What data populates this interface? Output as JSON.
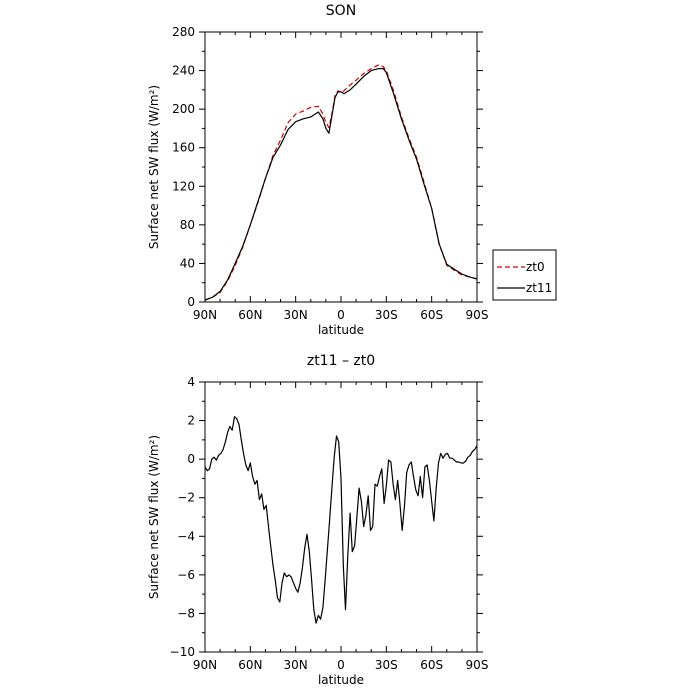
{
  "chart_data": [
    {
      "type": "line",
      "title": "SON",
      "xlabel": "latitude",
      "ylabel": "Surface net SW flux (W/m²)",
      "xlim": [
        90,
        -90
      ],
      "ylim": [
        0,
        280
      ],
      "x_ticks": [
        90,
        60,
        30,
        0,
        -30,
        -60,
        -90
      ],
      "x_tick_labels": [
        "90N",
        "60N",
        "30N",
        "0",
        "30S",
        "60S",
        "90S"
      ],
      "y_ticks": [
        0,
        40,
        80,
        120,
        160,
        200,
        240,
        280
      ],
      "y_tick_labels": [
        "0",
        "40",
        "80",
        "120",
        "160",
        "200",
        "240",
        "280"
      ],
      "legend": {
        "position": "right",
        "entries": [
          "zt0",
          "zt11"
        ]
      },
      "series": [
        {
          "name": "zt0",
          "color": "#cc0000",
          "dash": "dashed",
          "x": [
            90,
            85,
            80,
            75,
            70,
            65,
            60,
            55,
            50,
            45,
            40,
            35,
            30,
            25,
            20,
            15,
            12,
            10,
            8,
            6,
            4,
            2,
            0,
            -2,
            -4,
            -6,
            -10,
            -15,
            -20,
            -25,
            -28,
            -30,
            -35,
            -40,
            -45,
            -50,
            -55,
            -60,
            -65,
            -70,
            -75,
            -80,
            -85,
            -90
          ],
          "y": [
            2,
            5,
            10,
            22,
            38,
            57,
            80,
            103,
            128,
            152,
            168,
            186,
            195,
            198,
            202,
            203,
            195,
            186,
            181,
            195,
            214,
            219,
            217,
            219,
            222,
            225,
            230,
            237,
            242,
            246,
            244,
            240,
            218,
            192,
            170,
            150,
            124,
            97,
            60,
            38,
            33,
            28,
            26,
            24
          ]
        },
        {
          "name": "zt11",
          "color": "#000000",
          "dash": "solid",
          "x": [
            90,
            85,
            80,
            75,
            70,
            65,
            60,
            55,
            50,
            45,
            40,
            35,
            30,
            25,
            20,
            15,
            12,
            10,
            8,
            6,
            4,
            2,
            0,
            -2,
            -4,
            -6,
            -10,
            -15,
            -20,
            -25,
            -28,
            -30,
            -35,
            -40,
            -45,
            -50,
            -55,
            -60,
            -65,
            -70,
            -75,
            -80,
            -85,
            -90
          ],
          "y": [
            2,
            5,
            11,
            23,
            40,
            58,
            80,
            104,
            128,
            150,
            163,
            179,
            187,
            190,
            192,
            197,
            190,
            180,
            175,
            193,
            212,
            218,
            218,
            216,
            218,
            220,
            226,
            234,
            240,
            242,
            242,
            238,
            215,
            190,
            168,
            148,
            122,
            97,
            60,
            39,
            34,
            29,
            26,
            24
          ]
        }
      ]
    },
    {
      "type": "line",
      "title": "zt11 – zt0",
      "xlabel": "latitude",
      "ylabel": "Surface net SW flux (W/m²)",
      "xlim": [
        90,
        -90
      ],
      "ylim": [
        -10,
        4
      ],
      "x_ticks": [
        90,
        60,
        30,
        0,
        -30,
        -60,
        -90
      ],
      "x_tick_labels": [
        "90N",
        "60N",
        "30N",
        "0",
        "30S",
        "60S",
        "90S"
      ],
      "y_ticks": [
        -10,
        -8,
        -6,
        -4,
        -2,
        0,
        2,
        4
      ],
      "y_tick_labels": [
        "−10",
        "−8",
        "−6",
        "−4",
        "−2",
        "0",
        "2",
        "4"
      ],
      "series": [
        {
          "name": "",
          "color": "#000000",
          "dash": "solid",
          "x": [
            90,
            88.5,
            87,
            85.5,
            84,
            82.5,
            81,
            79.5,
            78,
            76.5,
            75,
            73.5,
            72,
            70.5,
            69,
            67.5,
            66,
            64.5,
            63,
            61.5,
            60,
            58.5,
            57,
            55.5,
            54,
            52.5,
            51,
            49.5,
            48,
            46.5,
            45,
            43.5,
            42,
            40.5,
            39,
            37.5,
            36,
            34.5,
            33,
            31.5,
            30,
            28.5,
            27,
            25.5,
            24,
            22.5,
            21,
            19.5,
            18,
            16.5,
            15,
            13.5,
            12,
            10.5,
            9,
            7.5,
            6,
            4.5,
            3,
            1.5,
            0,
            -1.5,
            -3,
            -4.5,
            -6,
            -7.5,
            -9,
            -10.5,
            -12,
            -13.5,
            -15,
            -16.5,
            -18,
            -19.5,
            -21,
            -22.5,
            -24,
            -25.5,
            -27,
            -28.5,
            -30,
            -31.5,
            -33,
            -34.5,
            -36,
            -37.5,
            -39,
            -40.5,
            -42,
            -43.5,
            -45,
            -46.5,
            -48,
            -49.5,
            -51,
            -52.5,
            -54,
            -55.5,
            -57,
            -58.5,
            -60,
            -61.5,
            -63,
            -64.5,
            -66,
            -67.5,
            -69,
            -70.5,
            -72,
            -73.5,
            -75,
            -76.5,
            -78,
            -79.5,
            -81,
            -82.5,
            -84,
            -85.5,
            -87,
            -88.5,
            -90
          ],
          "y": [
            -0.4,
            -0.6,
            -0.5,
            0.0,
            0.1,
            -0.05,
            0.2,
            0.3,
            0.5,
            0.9,
            1.4,
            1.7,
            1.5,
            2.2,
            2.1,
            1.8,
            1.0,
            0.3,
            -0.3,
            -0.6,
            -0.2,
            -0.9,
            -1.3,
            -1.1,
            -2.1,
            -1.8,
            -2.6,
            -2.4,
            -3.5,
            -4.5,
            -5.5,
            -6.3,
            -7.2,
            -7.4,
            -6.4,
            -5.9,
            -6.1,
            -6.0,
            -6.1,
            -6.4,
            -6.7,
            -6.9,
            -6.4,
            -5.6,
            -4.6,
            -3.9,
            -4.8,
            -6.2,
            -7.8,
            -8.5,
            -8.1,
            -8.3,
            -7.7,
            -6.3,
            -4.7,
            -3.1,
            -1.5,
            0.1,
            1.2,
            0.9,
            -1.0,
            -5.5,
            -7.8,
            -5.0,
            -2.8,
            -4.8,
            -4.5,
            -3.0,
            -1.5,
            -2.2,
            -3.5,
            -2.9,
            -1.9,
            -3.7,
            -3.5,
            -1.3,
            -1.4,
            -0.9,
            -0.5,
            -2.3,
            -1.4,
            -0.05,
            -0.15,
            -1.3,
            -2.1,
            -1.1,
            -2.3,
            -3.7,
            -2.4,
            -0.7,
            -0.3,
            -0.15,
            -0.9,
            -1.6,
            -1.9,
            -0.9,
            -2.0,
            -0.4,
            -0.3,
            -1.1,
            -2.2,
            -3.2,
            -1.5,
            -0.2,
            0.3,
            0.05,
            0.25,
            0.3,
            0.05,
            0.05,
            -0.05,
            -0.15,
            -0.15,
            -0.2,
            -0.2,
            -0.1,
            0.1,
            0.2,
            0.4,
            0.5,
            0.7
          ]
        }
      ]
    }
  ]
}
